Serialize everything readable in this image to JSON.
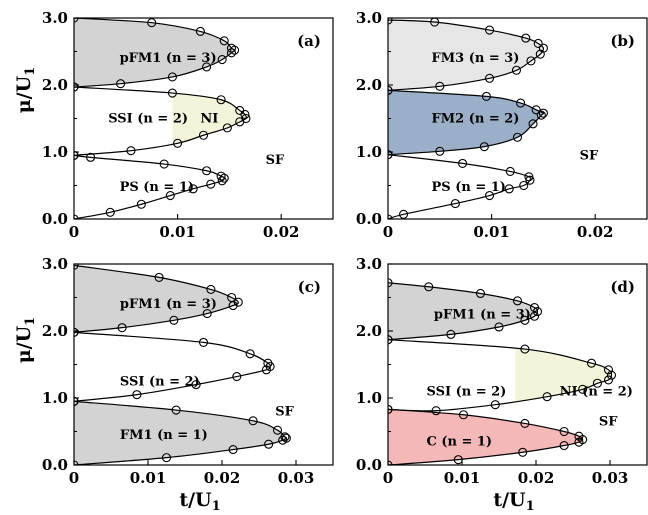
{
  "figure": {
    "ylabel_main": "μ/U",
    "ylabel_sub": "1",
    "xlabel_main": "t/U",
    "xlabel_sub": "1"
  },
  "chart_data": [
    {
      "panel": "(a)",
      "type": "scatter",
      "xlim": [
        0,
        0.025
      ],
      "ylim": [
        0,
        3.0
      ],
      "xticks": [
        "0",
        "0.01",
        "0.02"
      ],
      "yticks": [
        "0.0",
        "1.0",
        "2.0",
        "3.0"
      ],
      "colors": {
        "pFM1": "#d3d3d3",
        "NI": "#f4f4da"
      },
      "regions": [
        {
          "label": "pFM1 (n = 3)",
          "fill": "#d3d3d3",
          "x": 0.0044,
          "y": 2.4
        },
        {
          "label": "SSI (n = 2)",
          "fill": "none",
          "x": 0.0033,
          "y": 1.5
        },
        {
          "label": "NI",
          "fill": "#f4f4da",
          "x": 0.0122,
          "y": 1.5
        },
        {
          "label": "PS (n = 1)",
          "fill": "none",
          "x": 0.0044,
          "y": 0.48
        },
        {
          "label": "SF",
          "fill": "none",
          "x": 0.0185,
          "y": 0.88
        }
      ],
      "lobes": [
        {
          "fill": "#d3d3d3",
          "upper": [
            [
              0,
              3.0
            ],
            [
              0.0075,
              2.93
            ],
            [
              0.0122,
              2.8
            ],
            [
              0.0145,
              2.66
            ],
            [
              0.0152,
              2.55
            ]
          ],
          "lower": [
            [
              0,
              1.97
            ],
            [
              0.0045,
              2.02
            ],
            [
              0.0095,
              2.12
            ],
            [
              0.0128,
              2.27
            ],
            [
              0.0143,
              2.38
            ],
            [
              0.0152,
              2.48
            ]
          ],
          "tip": [
            [
              0.0155,
              2.52
            ]
          ]
        },
        {
          "fill": "none",
          "upper": [
            [
              0,
              1.97
            ],
            [
              0.0095,
              1.88
            ],
            [
              0.0142,
              1.78
            ],
            [
              0.016,
              1.62
            ],
            [
              0.0165,
              1.56
            ]
          ],
          "lower": [
            [
              0,
              0.95
            ],
            [
              0.0055,
              1.02
            ],
            [
              0.01,
              1.13
            ],
            [
              0.0125,
              1.25
            ],
            [
              0.0148,
              1.36
            ],
            [
              0.016,
              1.45
            ]
          ],
          "tip": [
            [
              0.0166,
              1.5
            ]
          ]
        },
        {
          "fill": "none",
          "upper": [
            [
              0,
              0.95
            ],
            [
              0.0016,
              0.92
            ],
            [
              0.0087,
              0.82
            ],
            [
              0.0128,
              0.72
            ],
            [
              0.0142,
              0.64
            ]
          ],
          "lower": [
            [
              0,
              0.0
            ],
            [
              0.0035,
              0.1
            ],
            [
              0.0065,
              0.22
            ],
            [
              0.0093,
              0.35
            ],
            [
              0.0115,
              0.45
            ],
            [
              0.0132,
              0.52
            ],
            [
              0.0143,
              0.57
            ]
          ],
          "tip": [
            [
              0.0145,
              0.61
            ]
          ]
        }
      ],
      "shade": {
        "fill": "#f4f4da",
        "x_from": 0.0095,
        "y_from": 1.0,
        "y_to": 1.9
      }
    },
    {
      "panel": "(b)",
      "type": "scatter",
      "xlim": [
        0,
        0.025
      ],
      "ylim": [
        0,
        3.0
      ],
      "xticks": [
        "0",
        "0.01",
        "0.02"
      ],
      "yticks": [
        "0.0",
        "1.0",
        "2.0",
        "3.0"
      ],
      "colors": {
        "FM3": "#e6e6e6",
        "FM2": "#9bb0c8"
      },
      "regions": [
        {
          "label": "FM3 (n = 3)",
          "fill": "#e6e6e6",
          "x": 0.0042,
          "y": 2.4
        },
        {
          "label": "FM2 (n = 2)",
          "fill": "#9bb0c8",
          "x": 0.0042,
          "y": 1.5
        },
        {
          "label": "PS (n = 1)",
          "fill": "none",
          "x": 0.0042,
          "y": 0.48
        },
        {
          "label": "SF",
          "fill": "none",
          "x": 0.0185,
          "y": 0.95
        }
      ],
      "lobes": [
        {
          "fill": "#e6e6e6",
          "upper": [
            [
              0,
              2.97
            ],
            [
              0.0045,
              2.94
            ],
            [
              0.0098,
              2.82
            ],
            [
              0.0133,
              2.7
            ],
            [
              0.0145,
              2.62
            ]
          ],
          "lower": [
            [
              0,
              1.92
            ],
            [
              0.005,
              1.98
            ],
            [
              0.0098,
              2.1
            ],
            [
              0.0124,
              2.22
            ],
            [
              0.0138,
              2.36
            ],
            [
              0.0147,
              2.46
            ]
          ],
          "tip": [
            [
              0.015,
              2.55
            ]
          ]
        },
        {
          "fill": "#9bb0c8",
          "upper": [
            [
              0,
              1.92
            ],
            [
              0.0095,
              1.83
            ],
            [
              0.0128,
              1.73
            ],
            [
              0.0143,
              1.63
            ]
          ],
          "lower": [
            [
              0,
              0.96
            ],
            [
              0.005,
              1.01
            ],
            [
              0.0093,
              1.08
            ],
            [
              0.0125,
              1.22
            ],
            [
              0.014,
              1.42
            ],
            [
              0.0148,
              1.55
            ]
          ],
          "tip": [
            [
              0.015,
              1.58
            ]
          ]
        },
        {
          "fill": "none",
          "upper": [
            [
              0,
              0.96
            ],
            [
              0.0072,
              0.83
            ],
            [
              0.0118,
              0.71
            ],
            [
              0.0136,
              0.63
            ]
          ],
          "lower": [
            [
              0,
              0.0
            ],
            [
              0.0015,
              0.07
            ],
            [
              0.0065,
              0.23
            ],
            [
              0.0098,
              0.35
            ],
            [
              0.0117,
              0.45
            ],
            [
              0.0131,
              0.5
            ]
          ],
          "tip": [
            [
              0.0137,
              0.58
            ]
          ]
        }
      ]
    },
    {
      "panel": "(c)",
      "type": "scatter",
      "xlim": [
        0,
        0.035
      ],
      "ylim": [
        0,
        3.0
      ],
      "xticks": [
        "0",
        "0.01",
        "0.02",
        "0.03"
      ],
      "yticks": [
        "0.0",
        "1.0",
        "2.0",
        "3.0"
      ],
      "colors": {
        "pFM1": "#d3d3d3",
        "FM1": "#d3d3d3"
      },
      "regions": [
        {
          "label": "pFM1 (n = 3)",
          "fill": "#d3d3d3",
          "x": 0.0062,
          "y": 2.4
        },
        {
          "label": "SSI (n = 2)",
          "fill": "none",
          "x": 0.0062,
          "y": 1.25
        },
        {
          "label": "FM1 (n = 1)",
          "fill": "none",
          "x": 0.0062,
          "y": 0.45
        },
        {
          "label": "SF",
          "fill": "none",
          "x": 0.0272,
          "y": 0.8
        }
      ],
      "lobes": [
        {
          "fill": "#d3d3d3",
          "upper": [
            [
              0,
              2.98
            ],
            [
              0.0115,
              2.8
            ],
            [
              0.0185,
              2.62
            ],
            [
              0.0213,
              2.5
            ]
          ],
          "lower": [
            [
              0,
              1.98
            ],
            [
              0.0065,
              2.05
            ],
            [
              0.0135,
              2.16
            ],
            [
              0.018,
              2.26
            ],
            [
              0.0215,
              2.38
            ]
          ],
          "tip": [
            [
              0.0222,
              2.43
            ]
          ]
        },
        {
          "fill": "none",
          "upper": [
            [
              0,
              1.98
            ],
            [
              0.0175,
              1.83
            ],
            [
              0.0238,
              1.66
            ],
            [
              0.0262,
              1.52
            ]
          ],
          "lower": [
            [
              0,
              0.95
            ],
            [
              0.0085,
              1.05
            ],
            [
              0.0165,
              1.2
            ],
            [
              0.022,
              1.32
            ],
            [
              0.026,
              1.42
            ]
          ],
          "tip": [
            [
              0.0265,
              1.47
            ]
          ]
        },
        {
          "fill": "#d3d3d3",
          "upper": [
            [
              0,
              0.95
            ],
            [
              0.0138,
              0.82
            ],
            [
              0.0242,
              0.66
            ],
            [
              0.0275,
              0.52
            ],
            [
              0.0285,
              0.42
            ]
          ],
          "lower": [
            [
              0,
              0.0
            ],
            [
              0.0125,
              0.11
            ],
            [
              0.0215,
              0.23
            ],
            [
              0.0263,
              0.31
            ],
            [
              0.0282,
              0.37
            ]
          ],
          "tip": [
            [
              0.0287,
              0.4
            ]
          ]
        }
      ]
    },
    {
      "panel": "(d)",
      "type": "scatter",
      "xlim": [
        0,
        0.035
      ],
      "ylim": [
        0,
        3.0
      ],
      "xticks": [
        "0",
        "0.01",
        "0.02",
        "0.03"
      ],
      "yticks": [
        "0.0",
        "1.0",
        "2.0",
        "3.0"
      ],
      "colors": {
        "pFM1": "#d3d3d3",
        "NI": "#f4f4da",
        "C": "#f4b8b8"
      },
      "regions": [
        {
          "label": "pFM1 (n = 3)",
          "fill": "#d3d3d3",
          "x": 0.0062,
          "y": 2.25
        },
        {
          "label": "SSI (n = 2)",
          "fill": "none",
          "x": 0.0052,
          "y": 1.1
        },
        {
          "label": "NI (n = 2)",
          "fill": "#f4f4da",
          "x": 0.0232,
          "y": 1.1
        },
        {
          "label": "C (n = 1)",
          "fill": "#f4b8b8",
          "x": 0.0052,
          "y": 0.35
        },
        {
          "label": "SF",
          "fill": "none",
          "x": 0.0285,
          "y": 0.65
        }
      ],
      "lobes": [
        {
          "fill": "#d3d3d3",
          "upper": [
            [
              0,
              2.72
            ],
            [
              0.0055,
              2.66
            ],
            [
              0.0125,
              2.56
            ],
            [
              0.0175,
              2.45
            ],
            [
              0.0198,
              2.35
            ]
          ],
          "lower": [
            [
              0,
              1.87
            ],
            [
              0.0085,
              1.95
            ],
            [
              0.015,
              2.06
            ],
            [
              0.0185,
              2.16
            ],
            [
              0.0198,
              2.22
            ]
          ],
          "tip": [
            [
              0.0202,
              2.29
            ]
          ]
        },
        {
          "fill": "none",
          "upper": [
            [
              0,
              1.87
            ],
            [
              0.0185,
              1.73
            ],
            [
              0.0275,
              1.52
            ],
            [
              0.0298,
              1.42
            ]
          ],
          "lower": [
            [
              0,
              0.83
            ],
            [
              0.0065,
              0.81
            ],
            [
              0.0145,
              0.9
            ],
            [
              0.0215,
              1.02
            ],
            [
              0.0263,
              1.13
            ],
            [
              0.0283,
              1.22
            ],
            [
              0.0298,
              1.27
            ]
          ],
          "tip": [
            [
              0.0302,
              1.34
            ]
          ]
        },
        {
          "fill": "#f4b8b8",
          "upper": [
            [
              0,
              0.83
            ],
            [
              0.0102,
              0.75
            ],
            [
              0.0185,
              0.62
            ],
            [
              0.0238,
              0.5
            ],
            [
              0.0258,
              0.43
            ]
          ],
          "lower": [
            [
              0,
              0.0
            ],
            [
              0.0095,
              0.08
            ],
            [
              0.0182,
              0.19
            ],
            [
              0.0238,
              0.29
            ],
            [
              0.0258,
              0.34
            ]
          ],
          "tip": [
            [
              0.0263,
              0.38
            ]
          ]
        }
      ],
      "shade": {
        "fill": "#f4f4da",
        "x_from": 0.0172,
        "y_from": 0.8,
        "y_to": 1.8
      }
    }
  ]
}
